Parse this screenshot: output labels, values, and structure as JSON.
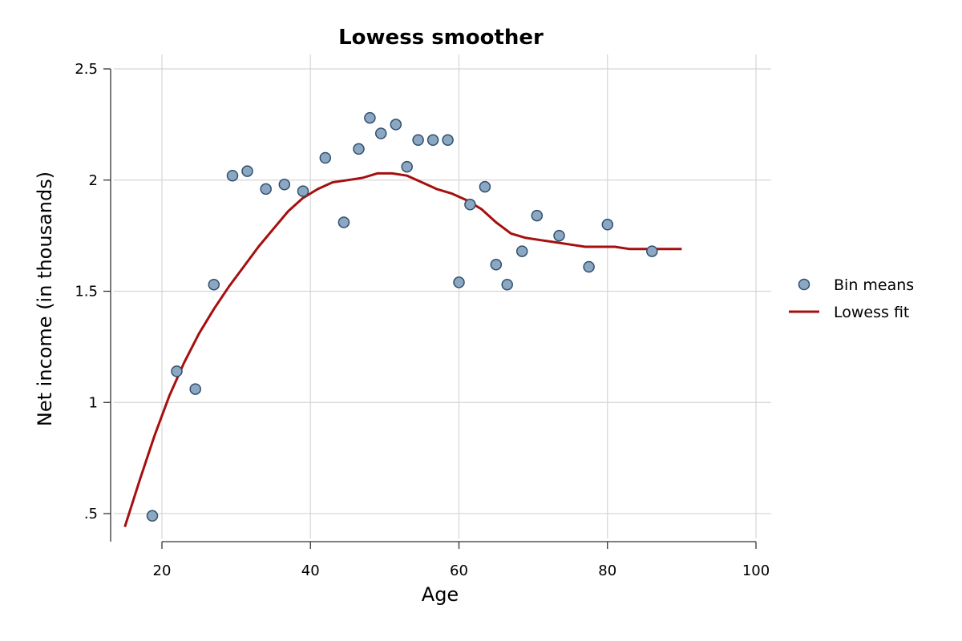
{
  "chart_data": {
    "type": "scatter",
    "title": "Lowess smoother",
    "xlabel": "Age",
    "ylabel": "Net income (in thousands)",
    "xlim": [
      15,
      100
    ],
    "ylim": [
      0.4,
      2.5
    ],
    "x_ticks": [
      20,
      40,
      60,
      80,
      100
    ],
    "x_tick_labels": [
      "20",
      "40",
      "60",
      "80",
      "100"
    ],
    "y_ticks": [
      0.5,
      1,
      1.5,
      2,
      2.5
    ],
    "y_tick_labels": [
      ".5",
      "1",
      "1.5",
      "2",
      "2.5"
    ],
    "grid": true,
    "legend_position": "right",
    "series": [
      {
        "name": "Bin means",
        "kind": "scatter",
        "color": "#8ca7c2",
        "edge_color": "#2f4f6f",
        "x": [
          18.7,
          22,
          24.5,
          27,
          29.5,
          31.5,
          34,
          36.5,
          39,
          42,
          44.5,
          46.5,
          48,
          49.5,
          51.5,
          53,
          54.5,
          56.5,
          58.5,
          60,
          61.5,
          63.5,
          65,
          66.5,
          68.5,
          70.5,
          73.5,
          77.5,
          80,
          86
        ],
        "y": [
          0.49,
          1.14,
          1.06,
          1.53,
          2.02,
          2.04,
          1.96,
          1.98,
          1.95,
          2.1,
          1.81,
          2.14,
          2.28,
          2.21,
          2.25,
          2.06,
          2.18,
          2.18,
          2.18,
          1.54,
          1.89,
          1.97,
          1.62,
          1.53,
          1.68,
          1.84,
          1.75,
          1.61,
          1.8,
          1.68
        ]
      },
      {
        "name": "Lowess fit",
        "kind": "line",
        "color": "#a50f0f",
        "x": [
          15,
          17,
          19,
          21,
          23,
          25,
          27,
          29,
          31,
          33,
          35,
          37,
          39,
          41,
          43,
          45,
          47,
          49,
          51,
          53,
          55,
          57,
          59,
          61,
          63,
          65,
          67,
          69,
          71,
          73,
          75,
          77,
          79,
          81,
          83,
          85,
          87,
          90
        ],
        "y": [
          0.44,
          0.65,
          0.85,
          1.03,
          1.18,
          1.31,
          1.42,
          1.52,
          1.61,
          1.7,
          1.78,
          1.86,
          1.92,
          1.96,
          1.99,
          2.0,
          2.01,
          2.03,
          2.03,
          2.02,
          1.99,
          1.96,
          1.94,
          1.91,
          1.87,
          1.81,
          1.76,
          1.74,
          1.73,
          1.72,
          1.71,
          1.7,
          1.7,
          1.7,
          1.69,
          1.69,
          1.69,
          1.69
        ]
      }
    ]
  }
}
